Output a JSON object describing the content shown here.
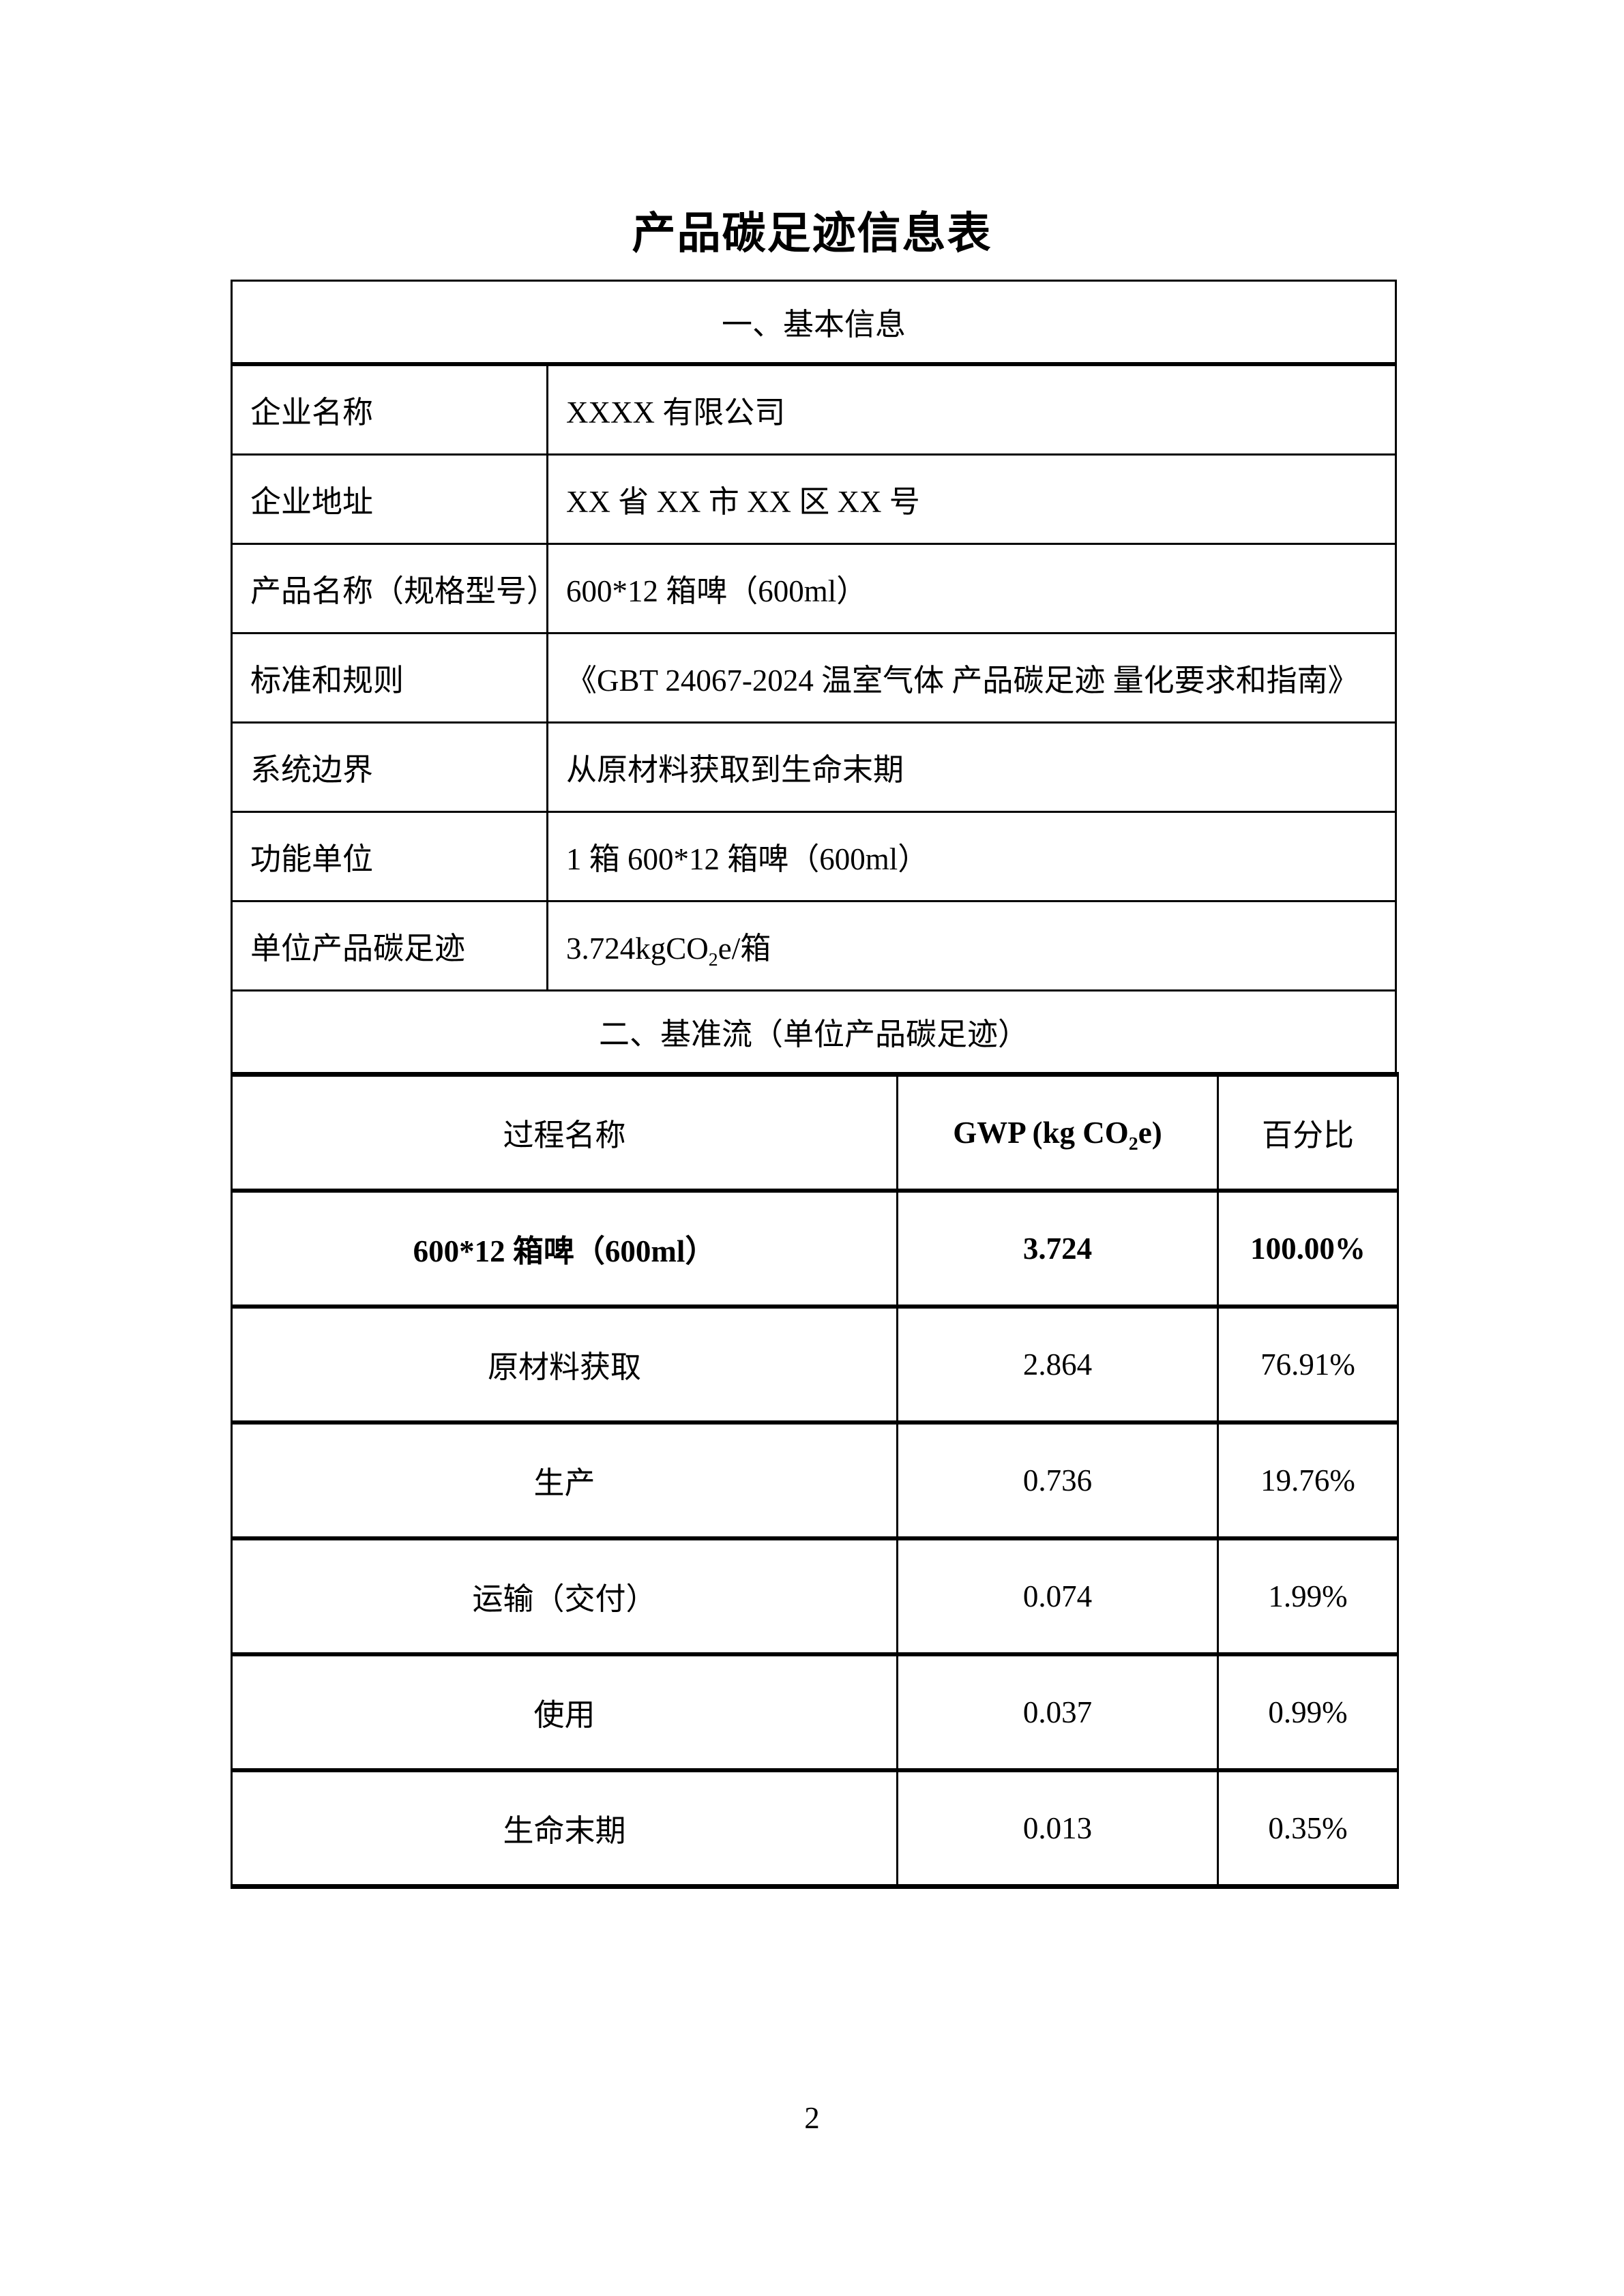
{
  "page": {
    "title": "产品碳足迹信息表",
    "number": "2"
  },
  "colors": {
    "text": "#000000",
    "border": "#000000",
    "background": "#ffffff"
  },
  "basic_info": {
    "section_title": "一、基本信息",
    "rows": [
      {
        "label": "企业名称",
        "value": "XXXX 有限公司"
      },
      {
        "label": "企业地址",
        "value": "XX 省 XX 市 XX 区 XX 号"
      },
      {
        "label": "产品名称（规格型号）",
        "value": "600*12 箱啤（600ml）"
      },
      {
        "label": "标准和规则",
        "value": "《GBT 24067-2024 温室气体 产品碳足迹 量化要求和指南》"
      },
      {
        "label": "系统边界",
        "value": "从原材料获取到生命末期"
      },
      {
        "label": "功能单位",
        "value": "1 箱 600*12 箱啤（600ml）"
      },
      {
        "label": "单位产品碳足迹",
        "value_parts": {
          "pre": "3.724kgCO",
          "sub": "2",
          "post": "e/箱"
        }
      }
    ]
  },
  "benchmark": {
    "section_title": "二、基准流（单位产品碳足迹）",
    "headers": {
      "name": "过程名称",
      "gwp_parts": {
        "pre": "GWP (kg CO",
        "sub": "2",
        "post": "e)"
      },
      "pct": "百分比"
    },
    "rows": [
      {
        "name": "600*12 箱啤（600ml）",
        "gwp": "3.724",
        "pct": "100.00%"
      },
      {
        "name": "原材料获取",
        "gwp": "2.864",
        "pct": "76.91%"
      },
      {
        "name": "生产",
        "gwp": "0.736",
        "pct": "19.76%"
      },
      {
        "name": "运输（交付）",
        "gwp": "0.074",
        "pct": "1.99%"
      },
      {
        "name": "使用",
        "gwp": "0.037",
        "pct": "0.99%"
      },
      {
        "name": "生命末期",
        "gwp": "0.013",
        "pct": "0.35%"
      }
    ]
  }
}
